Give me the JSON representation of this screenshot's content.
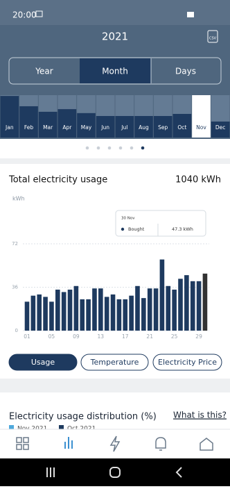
{
  "status_bar": {
    "time": "20:00"
  },
  "header": {
    "title": "2021",
    "export_icon": "CSV"
  },
  "tabs": [
    "Year",
    "Month",
    "Days"
  ],
  "chart_data": [
    {
      "type": "bar",
      "categories": [
        "Jan",
        "Feb",
        "Mar",
        "Apr",
        "May",
        "Jun",
        "Jul",
        "Aug",
        "Sep",
        "Oct",
        "Nov",
        "Dec"
      ],
      "values": [
        97,
        58,
        37,
        47,
        32,
        21,
        21,
        21,
        21,
        29,
        null,
        null
      ],
      "ylim": [
        0,
        100
      ],
      "color": "#1e3a5f"
    },
    {
      "type": "bar",
      "title": "Total electricity usage",
      "total": "1040 kWh",
      "y_label": "kWh",
      "categories": [
        "01",
        null,
        null,
        null,
        "05",
        null,
        null,
        null,
        "09",
        null,
        null,
        null,
        "13",
        null,
        null,
        null,
        "17",
        null,
        null,
        null,
        "21",
        null,
        null,
        null,
        "25",
        null,
        null,
        null,
        "29",
        null
      ],
      "values": [
        24,
        29,
        30,
        28,
        24,
        34,
        32,
        34,
        37,
        26,
        26,
        35,
        35,
        28,
        30,
        26,
        26,
        29,
        37,
        27,
        35,
        35,
        59,
        37,
        34,
        43,
        46,
        41,
        41,
        47.3
      ],
      "ylim": [
        0,
        72
      ],
      "yticks": [
        0,
        36,
        72
      ],
      "grid": true,
      "color": "#1e3a5f",
      "highlight_color": "#333333",
      "tooltip": {
        "date": "30 Nov",
        "series": "Bought",
        "value": 47.3,
        "value_label": "47.3 kWh"
      }
    }
  ],
  "buttons": [
    "Usage",
    "Temperature",
    "Electricity Price"
  ],
  "distribution": {
    "title": "Electricity usage distribution (%)",
    "help_link": "What is this?",
    "legend": [
      {
        "name": "Nov 2021",
        "color": "#4fa9dc"
      },
      {
        "name": "Oct 2021",
        "color": "#1e3a5f"
      }
    ]
  }
}
